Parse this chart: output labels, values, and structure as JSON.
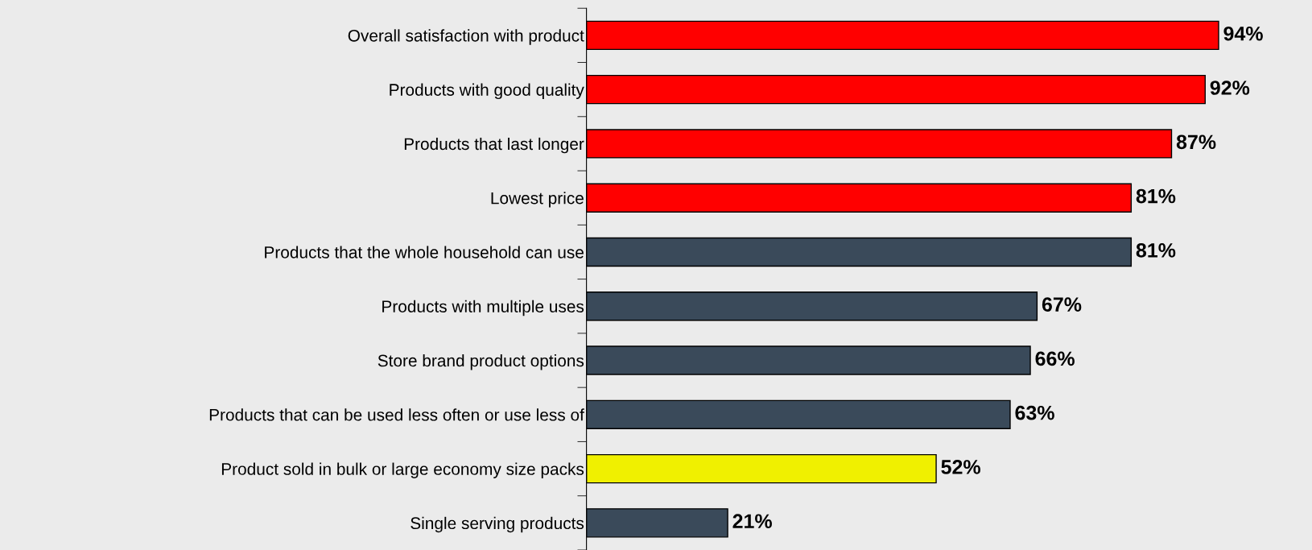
{
  "chart_data": {
    "type": "bar",
    "orientation": "horizontal",
    "categories": [
      "Overall satisfaction with product",
      "Products with good quality",
      "Products that last longer",
      "Lowest price",
      "Products that the whole household can use",
      "Products with multiple uses",
      "Store brand product options",
      "Products that can be used less often or use less of",
      "Product sold in bulk or large economy size packs",
      "Single serving products"
    ],
    "values": [
      94,
      92,
      87,
      81,
      81,
      67,
      66,
      63,
      52,
      21
    ],
    "value_labels": [
      "94%",
      "92%",
      "87%",
      "81%",
      "81%",
      "67%",
      "66%",
      "63%",
      "52%",
      "21%"
    ],
    "colors": [
      "#ff0000",
      "#ff0000",
      "#ff0000",
      "#ff0000",
      "#3a4a5a",
      "#3a4a5a",
      "#3a4a5a",
      "#3a4a5a",
      "#f0f000",
      "#3a4a5a"
    ],
    "grid": false,
    "legend": false
  }
}
